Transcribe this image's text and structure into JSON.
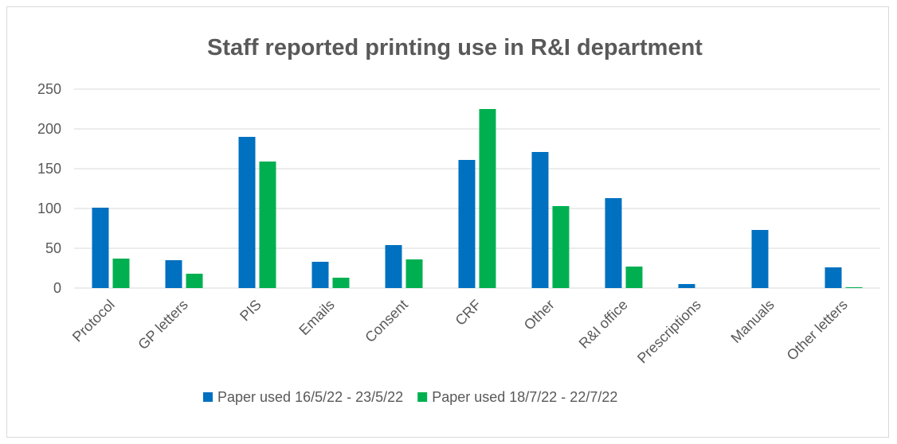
{
  "chart_data": {
    "type": "bar",
    "title": "Staff reported printing use in R&I department",
    "xlabel": "",
    "ylabel": "",
    "ylim": [
      0,
      250
    ],
    "yticks": [
      0,
      50,
      100,
      150,
      200,
      250
    ],
    "grid": true,
    "legend_position": "bottom",
    "categories": [
      "Protocol",
      "GP letters",
      "PIS",
      "Emails",
      "Consent",
      "CRF",
      "Other",
      "R&I office",
      "Prescriptions",
      "Manuals",
      "Other letters"
    ],
    "series": [
      {
        "name": "Paper used 16/5/22 - 23/5/22",
        "color": "#0070c0",
        "values": [
          101,
          35,
          190,
          33,
          54,
          161,
          171,
          113,
          5,
          73,
          26
        ]
      },
      {
        "name": "Paper used 18/7/22 - 22/7/22",
        "color": "#00b050",
        "values": [
          37,
          18,
          159,
          13,
          36,
          225,
          103,
          27,
          0,
          0,
          1
        ]
      }
    ]
  }
}
